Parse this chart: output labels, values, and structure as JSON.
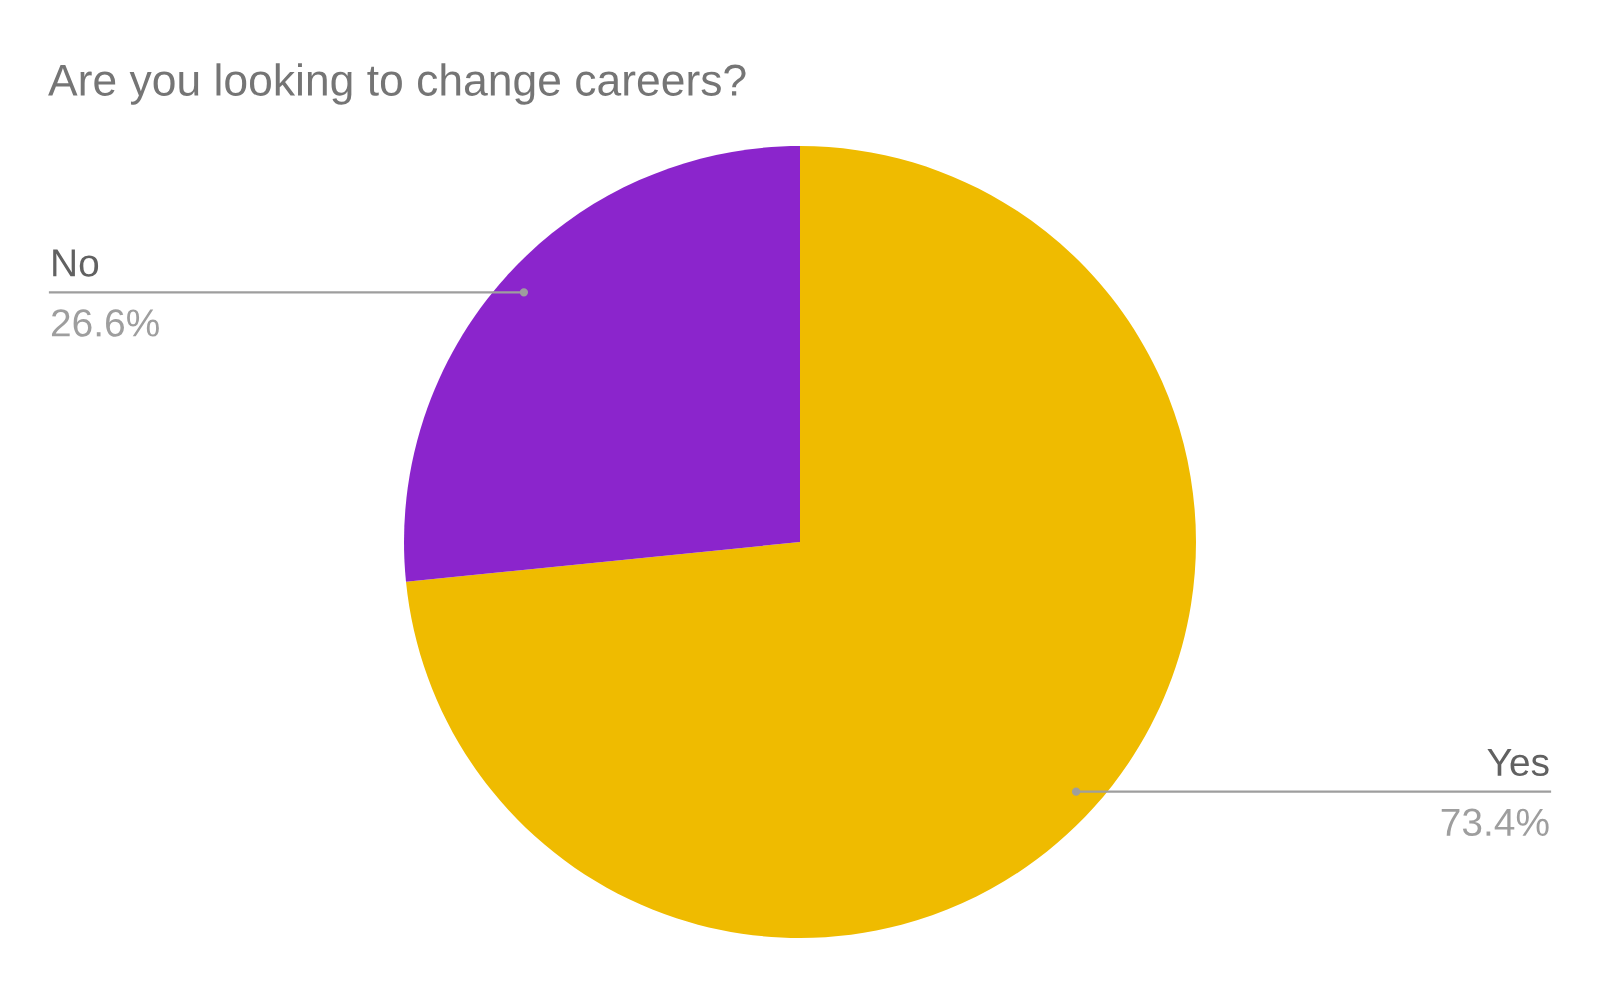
{
  "chart_data": {
    "type": "pie",
    "title": "Are you looking to change careers?",
    "categories": [
      "Yes",
      "No"
    ],
    "values": [
      73.4,
      26.6
    ],
    "value_labels": [
      "73.4%",
      "26.6%"
    ],
    "colors": [
      "#efbb00",
      "#8b25cc"
    ],
    "legend": false
  }
}
